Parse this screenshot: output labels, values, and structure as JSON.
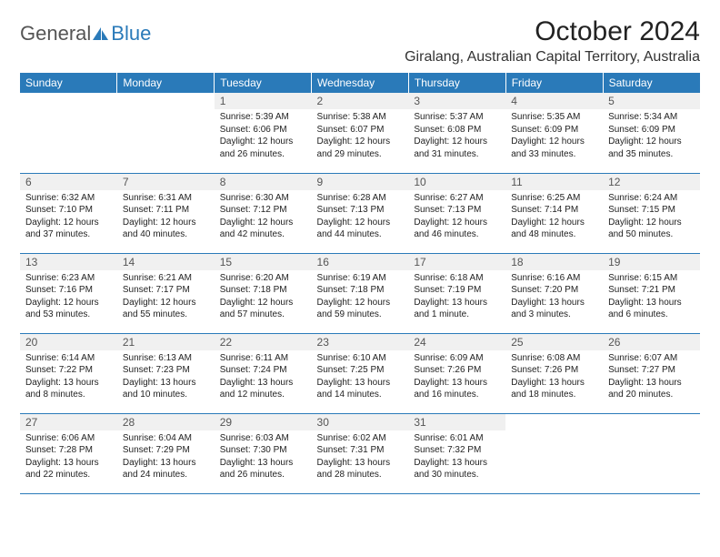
{
  "brand": {
    "part1": "General",
    "part2": "Blue"
  },
  "title": "October 2024",
  "location": "Giralang, Australian Capital Territory, Australia",
  "colors": {
    "accent": "#2a7ab9",
    "header_text": "#ffffff",
    "daynum_bg": "#f0f0f0",
    "body_text": "#222222",
    "page_bg": "#ffffff"
  },
  "daynames": [
    "Sunday",
    "Monday",
    "Tuesday",
    "Wednesday",
    "Thursday",
    "Friday",
    "Saturday"
  ],
  "weeks": [
    [
      null,
      null,
      {
        "n": "1",
        "sunrise": "5:39 AM",
        "sunset": "6:06 PM",
        "daylight": "12 hours and 26 minutes."
      },
      {
        "n": "2",
        "sunrise": "5:38 AM",
        "sunset": "6:07 PM",
        "daylight": "12 hours and 29 minutes."
      },
      {
        "n": "3",
        "sunrise": "5:37 AM",
        "sunset": "6:08 PM",
        "daylight": "12 hours and 31 minutes."
      },
      {
        "n": "4",
        "sunrise": "5:35 AM",
        "sunset": "6:09 PM",
        "daylight": "12 hours and 33 minutes."
      },
      {
        "n": "5",
        "sunrise": "5:34 AM",
        "sunset": "6:09 PM",
        "daylight": "12 hours and 35 minutes."
      }
    ],
    [
      {
        "n": "6",
        "sunrise": "6:32 AM",
        "sunset": "7:10 PM",
        "daylight": "12 hours and 37 minutes."
      },
      {
        "n": "7",
        "sunrise": "6:31 AM",
        "sunset": "7:11 PM",
        "daylight": "12 hours and 40 minutes."
      },
      {
        "n": "8",
        "sunrise": "6:30 AM",
        "sunset": "7:12 PM",
        "daylight": "12 hours and 42 minutes."
      },
      {
        "n": "9",
        "sunrise": "6:28 AM",
        "sunset": "7:13 PM",
        "daylight": "12 hours and 44 minutes."
      },
      {
        "n": "10",
        "sunrise": "6:27 AM",
        "sunset": "7:13 PM",
        "daylight": "12 hours and 46 minutes."
      },
      {
        "n": "11",
        "sunrise": "6:25 AM",
        "sunset": "7:14 PM",
        "daylight": "12 hours and 48 minutes."
      },
      {
        "n": "12",
        "sunrise": "6:24 AM",
        "sunset": "7:15 PM",
        "daylight": "12 hours and 50 minutes."
      }
    ],
    [
      {
        "n": "13",
        "sunrise": "6:23 AM",
        "sunset": "7:16 PM",
        "daylight": "12 hours and 53 minutes."
      },
      {
        "n": "14",
        "sunrise": "6:21 AM",
        "sunset": "7:17 PM",
        "daylight": "12 hours and 55 minutes."
      },
      {
        "n": "15",
        "sunrise": "6:20 AM",
        "sunset": "7:18 PM",
        "daylight": "12 hours and 57 minutes."
      },
      {
        "n": "16",
        "sunrise": "6:19 AM",
        "sunset": "7:18 PM",
        "daylight": "12 hours and 59 minutes."
      },
      {
        "n": "17",
        "sunrise": "6:18 AM",
        "sunset": "7:19 PM",
        "daylight": "13 hours and 1 minute."
      },
      {
        "n": "18",
        "sunrise": "6:16 AM",
        "sunset": "7:20 PM",
        "daylight": "13 hours and 3 minutes."
      },
      {
        "n": "19",
        "sunrise": "6:15 AM",
        "sunset": "7:21 PM",
        "daylight": "13 hours and 6 minutes."
      }
    ],
    [
      {
        "n": "20",
        "sunrise": "6:14 AM",
        "sunset": "7:22 PM",
        "daylight": "13 hours and 8 minutes."
      },
      {
        "n": "21",
        "sunrise": "6:13 AM",
        "sunset": "7:23 PM",
        "daylight": "13 hours and 10 minutes."
      },
      {
        "n": "22",
        "sunrise": "6:11 AM",
        "sunset": "7:24 PM",
        "daylight": "13 hours and 12 minutes."
      },
      {
        "n": "23",
        "sunrise": "6:10 AM",
        "sunset": "7:25 PM",
        "daylight": "13 hours and 14 minutes."
      },
      {
        "n": "24",
        "sunrise": "6:09 AM",
        "sunset": "7:26 PM",
        "daylight": "13 hours and 16 minutes."
      },
      {
        "n": "25",
        "sunrise": "6:08 AM",
        "sunset": "7:26 PM",
        "daylight": "13 hours and 18 minutes."
      },
      {
        "n": "26",
        "sunrise": "6:07 AM",
        "sunset": "7:27 PM",
        "daylight": "13 hours and 20 minutes."
      }
    ],
    [
      {
        "n": "27",
        "sunrise": "6:06 AM",
        "sunset": "7:28 PM",
        "daylight": "13 hours and 22 minutes."
      },
      {
        "n": "28",
        "sunrise": "6:04 AM",
        "sunset": "7:29 PM",
        "daylight": "13 hours and 24 minutes."
      },
      {
        "n": "29",
        "sunrise": "6:03 AM",
        "sunset": "7:30 PM",
        "daylight": "13 hours and 26 minutes."
      },
      {
        "n": "30",
        "sunrise": "6:02 AM",
        "sunset": "7:31 PM",
        "daylight": "13 hours and 28 minutes."
      },
      {
        "n": "31",
        "sunrise": "6:01 AM",
        "sunset": "7:32 PM",
        "daylight": "13 hours and 30 minutes."
      },
      null,
      null
    ]
  ],
  "labels": {
    "sunrise": "Sunrise: ",
    "sunset": "Sunset: ",
    "daylight": "Daylight: "
  }
}
